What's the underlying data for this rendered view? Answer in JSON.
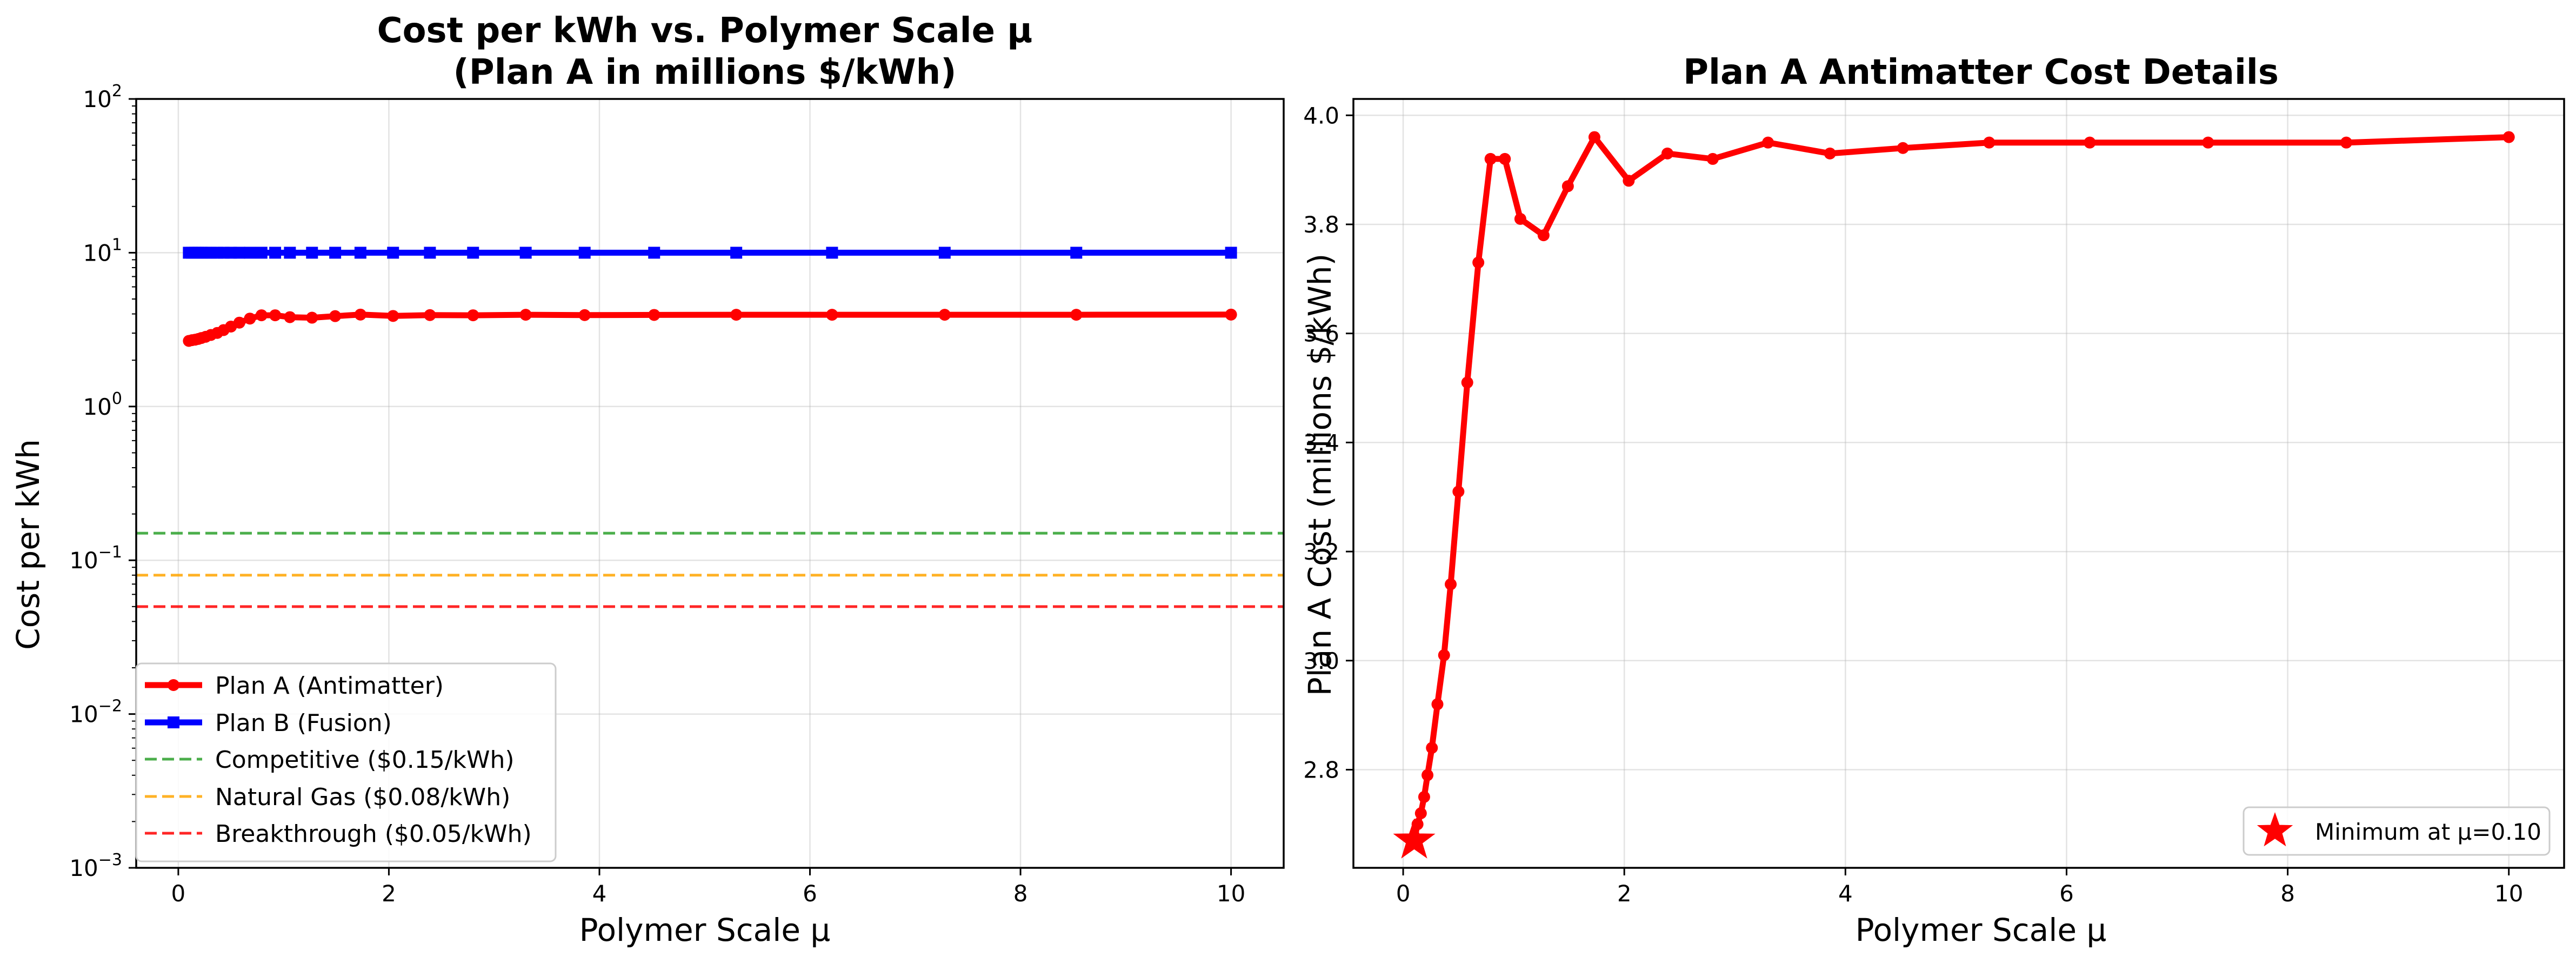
{
  "chart_data": [
    {
      "type": "line",
      "title_lines": [
        "Cost per kWh vs. Polymer Scale μ",
        "(Plan A in millions $/kWh)"
      ],
      "xlabel": "Polymer Scale μ",
      "ylabel": "Cost per kWh",
      "xlim": [
        -0.4,
        10.5
      ],
      "ylim": [
        0.001,
        100
      ],
      "yscale": "log",
      "grid": true,
      "legend_position": "lower-left",
      "xticks": [
        0,
        2,
        4,
        6,
        8,
        10
      ],
      "xtick_labels": [
        "0",
        "2",
        "4",
        "6",
        "8",
        "10"
      ],
      "yticks": [
        0.001,
        0.01,
        0.1,
        1,
        10,
        100
      ],
      "ytick_labels": [
        {
          "base": "10",
          "exp": "−3"
        },
        {
          "base": "10",
          "exp": "−2"
        },
        {
          "base": "10",
          "exp": "−1"
        },
        {
          "base": "10",
          "exp": "0"
        },
        {
          "base": "10",
          "exp": "1"
        },
        {
          "base": "10",
          "exp": "2"
        }
      ],
      "series": [
        {
          "name": "Plan A (Antimatter)",
          "color": "#ff0000",
          "marker": "circle",
          "x": [
            0.1,
            0.13,
            0.16,
            0.19,
            0.22,
            0.26,
            0.31,
            0.37,
            0.43,
            0.5,
            0.58,
            0.68,
            0.79,
            0.92,
            1.06,
            1.27,
            1.49,
            1.73,
            2.04,
            2.39,
            2.8,
            3.3,
            3.86,
            4.52,
            5.3,
            6.21,
            7.28,
            8.53,
            10.0
          ],
          "y": [
            2.67,
            2.7,
            2.72,
            2.75,
            2.79,
            2.84,
            2.92,
            3.01,
            3.14,
            3.31,
            3.51,
            3.73,
            3.92,
            3.92,
            3.81,
            3.78,
            3.87,
            3.96,
            3.88,
            3.93,
            3.92,
            3.95,
            3.93,
            3.94,
            3.95,
            3.95,
            3.95,
            3.95,
            3.96
          ]
        },
        {
          "name": "Plan B (Fusion)",
          "color": "#0000ff",
          "marker": "square",
          "x": [
            0.1,
            0.13,
            0.16,
            0.19,
            0.22,
            0.26,
            0.31,
            0.37,
            0.43,
            0.5,
            0.58,
            0.68,
            0.79,
            0.92,
            1.06,
            1.27,
            1.49,
            1.73,
            2.04,
            2.39,
            2.8,
            3.3,
            3.86,
            4.52,
            5.3,
            6.21,
            7.28,
            8.53,
            10.0
          ],
          "y": [
            10,
            10,
            10,
            10,
            10,
            10,
            10,
            10,
            10,
            10,
            10,
            10,
            10,
            10,
            10,
            10,
            10,
            10,
            10,
            10,
            10,
            10,
            10,
            10,
            10,
            10,
            10,
            10,
            10
          ]
        }
      ],
      "reference_lines": [
        {
          "name": "Competitive ($0.15/kWh)",
          "y": 0.15,
          "color": "#2ca02c"
        },
        {
          "name": "Natural Gas ($0.08/kWh)",
          "y": 0.08,
          "color": "#ffa500"
        },
        {
          "name": "Breakthrough ($0.05/kWh)",
          "y": 0.05,
          "color": "#ff0000"
        }
      ]
    },
    {
      "type": "line",
      "title": "Plan A Antimatter Cost Details",
      "xlabel": "Polymer Scale μ",
      "ylabel": "Plan A Cost (millions $/kWh)",
      "xlim": [
        -0.45,
        10.5
      ],
      "ylim": [
        2.62,
        4.03
      ],
      "grid": true,
      "legend_position": "lower-right",
      "xticks": [
        0,
        2,
        4,
        6,
        8,
        10
      ],
      "xtick_labels": [
        "0",
        "2",
        "4",
        "6",
        "8",
        "10"
      ],
      "yticks": [
        2.8,
        3.0,
        3.2,
        3.4,
        3.6,
        3.8,
        4.0
      ],
      "ytick_labels": [
        "2.8",
        "3.0",
        "3.2",
        "3.4",
        "3.6",
        "3.8",
        "4.0"
      ],
      "series": [
        {
          "color": "#ff0000",
          "marker": "circle",
          "x": [
            0.1,
            0.13,
            0.16,
            0.19,
            0.22,
            0.26,
            0.31,
            0.37,
            0.43,
            0.5,
            0.58,
            0.68,
            0.79,
            0.92,
            1.06,
            1.27,
            1.49,
            1.73,
            2.04,
            2.39,
            2.8,
            3.3,
            3.86,
            4.52,
            5.3,
            6.21,
            7.28,
            8.53,
            10.0
          ],
          "y": [
            2.67,
            2.7,
            2.72,
            2.75,
            2.79,
            2.84,
            2.92,
            3.01,
            3.14,
            3.31,
            3.51,
            3.73,
            3.92,
            3.92,
            3.81,
            3.78,
            3.87,
            3.96,
            3.88,
            3.93,
            3.92,
            3.95,
            3.93,
            3.94,
            3.95,
            3.95,
            3.95,
            3.95,
            3.96
          ]
        }
      ],
      "highlight": {
        "name": "Minimum at μ=0.10",
        "x": 0.1,
        "y": 2.67,
        "color": "#ff0000",
        "marker": "star"
      }
    }
  ]
}
